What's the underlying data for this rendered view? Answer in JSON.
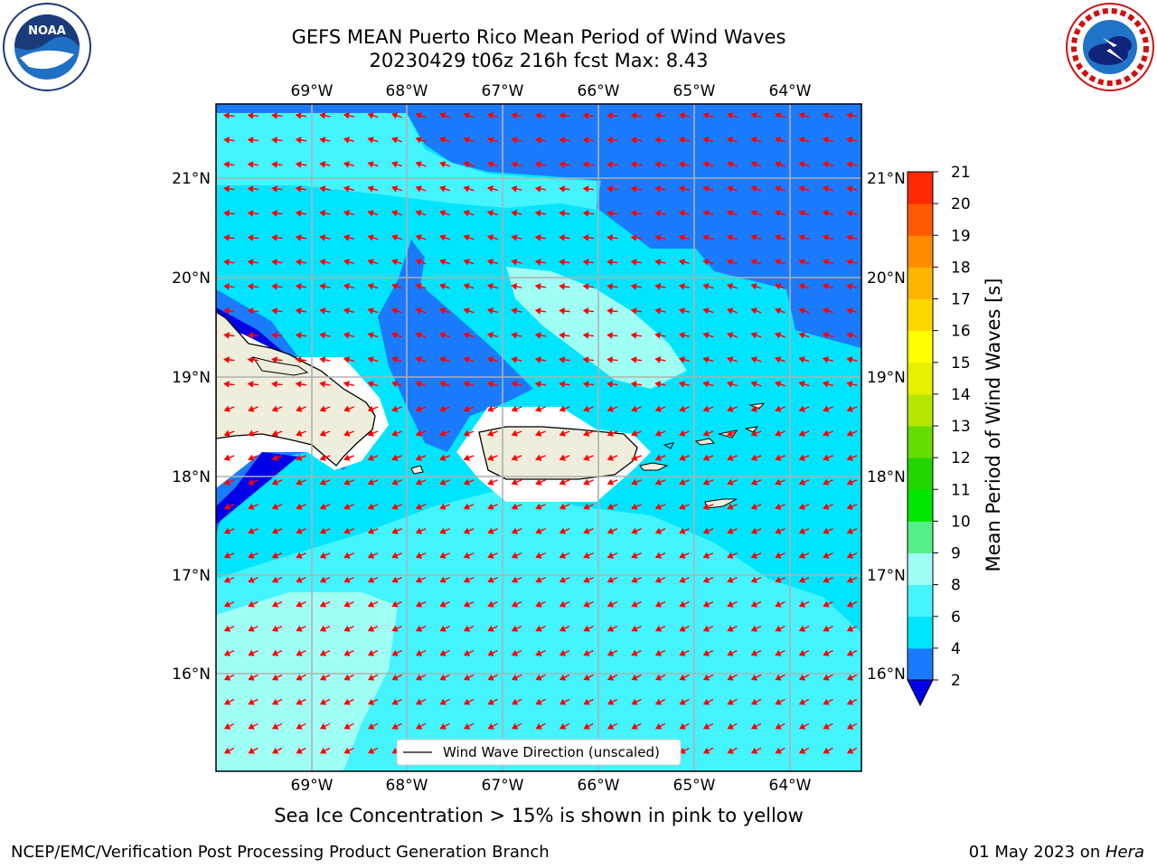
{
  "header": {
    "title_line1": "GEFS MEAN Puerto Rico Mean Period of Wind Waves",
    "title_line2": "20230429 t06z 216h fcst   Max: 8.43"
  },
  "logos": {
    "noara_left": "noaa-logo",
    "nws_right": "nws-logo"
  },
  "map": {
    "lon_ticks": [
      "69°W",
      "68°W",
      "67°W",
      "66°W",
      "65°W",
      "64°W"
    ],
    "lat_ticks": [
      "21°N",
      "20°N",
      "19°N",
      "18°N",
      "17°N",
      "16°N"
    ],
    "legend_label": "Wind Wave Direction (unscaled)"
  },
  "colorbar": {
    "label": "Mean Period of Wind Waves [s]",
    "ticks": [
      "2",
      "4",
      "6",
      "8",
      "9",
      "10",
      "11",
      "12",
      "13",
      "14",
      "15",
      "16",
      "17",
      "18",
      "19",
      "20",
      "21"
    ],
    "colors": [
      "#1a7bff",
      "#00e5ff",
      "#44f4ff",
      "#a0fff4",
      "#55f08a",
      "#00e600",
      "#22d400",
      "#66dd00",
      "#b3e600",
      "#e6f000",
      "#ffff00",
      "#ffd700",
      "#ffb400",
      "#ff8c00",
      "#ff5a00",
      "#ff2800",
      "#ff0000"
    ],
    "extend_color": "#0000e6"
  },
  "caption": "Sea Ice Concentration > 15% is shown in pink to yellow",
  "footer": {
    "left": "NCEP/EMC/Verification Post Processing Product Generation Branch",
    "right_date": "01 May 2023 on ",
    "right_machine": "Hera"
  }
}
